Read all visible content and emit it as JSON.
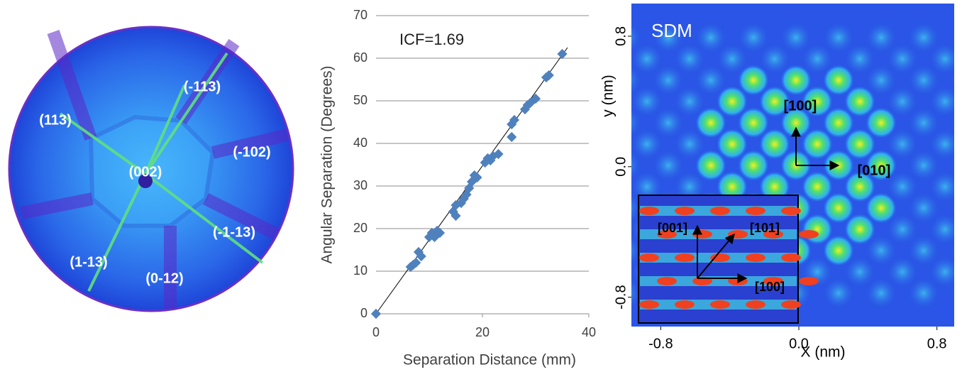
{
  "chart_data": [
    {
      "type": "image",
      "annotations": [
        "(113)",
        "(-113)",
        "(-102)",
        "(002)",
        "(-1-13)",
        "(1-13)",
        "(0-12)"
      ]
    },
    {
      "type": "scatter",
      "xlabel": "Separation Distance (mm)",
      "ylabel": "Angular Separation (Degrees)",
      "annotation": "ICF=1.69",
      "color": "#4f81bd",
      "grid": true,
      "x": [
        0,
        6.5,
        7,
        7.5,
        8,
        8.5,
        10,
        10.5,
        11,
        11.5,
        12,
        14.5,
        15,
        15,
        16,
        16.5,
        17,
        17.5,
        18,
        18.5,
        19,
        20.5,
        21,
        21.5,
        22,
        23,
        25.5,
        25.5,
        26,
        28,
        28.5,
        29,
        30,
        32,
        32.5,
        35
      ],
      "y": [
        0,
        11,
        11.5,
        12,
        14.5,
        13.5,
        18,
        19,
        18,
        19.5,
        19,
        24,
        25.5,
        23,
        26,
        27,
        28,
        29.5,
        31,
        32.5,
        32,
        35.5,
        36.5,
        36,
        37,
        37.5,
        41.5,
        44.5,
        45.5,
        48,
        49,
        49.5,
        50.5,
        55.5,
        56,
        61
      ],
      "fit": {
        "x": [
          0,
          36
        ],
        "y": [
          0,
          62.5
        ]
      },
      "xlim": [
        0,
        40
      ],
      "ylim": [
        0,
        70
      ],
      "xticks": [
        0,
        20,
        40
      ],
      "yticks": [
        0,
        10,
        20,
        30,
        40,
        50,
        60,
        70
      ]
    },
    {
      "type": "image",
      "title": "SDM",
      "xlabel": "X (nm)",
      "ylabel": "y (nm)",
      "xlim": [
        -0.97,
        0.9
      ],
      "ylim": [
        -0.98,
        1.0
      ],
      "xticks": [
        -0.8,
        {
          "value": 0,
          "label": "0.0"
        },
        0.8
      ],
      "yticks": [
        -0.8,
        {
          "value": 0,
          "label": "0.0"
        },
        0.8
      ],
      "annotations": [
        "[100]",
        "[010]",
        "[001]",
        "[101]",
        "[100]"
      ]
    }
  ]
}
